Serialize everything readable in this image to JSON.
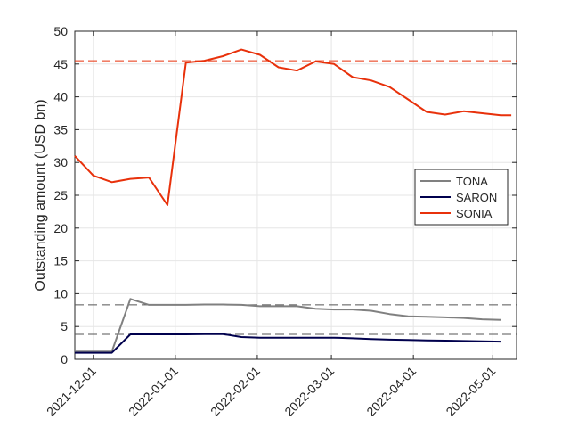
{
  "chart_data": {
    "type": "line",
    "title": "",
    "xlabel": "",
    "ylabel": "Outstanding amount (USD bn)",
    "ylim": [
      0,
      50
    ],
    "xlim": [
      "2021-11-24",
      "2022-05-10"
    ],
    "y_ticks": [
      0,
      5,
      10,
      15,
      20,
      25,
      30,
      35,
      40,
      45,
      50
    ],
    "x_ticks": [
      "2021-12-01",
      "2022-01-01",
      "2022-02-01",
      "2022-03-01",
      "2022-04-01",
      "2022-05-01"
    ],
    "grid": true,
    "legend_position": "right",
    "series": [
      {
        "name": "TONA",
        "color": "#808080",
        "x": [
          "2021-11-24",
          "2021-12-01",
          "2021-12-08",
          "2021-12-15",
          "2021-12-22",
          "2021-12-29",
          "2022-01-05",
          "2022-01-12",
          "2022-01-19",
          "2022-01-26",
          "2022-02-02",
          "2022-02-09",
          "2022-02-16",
          "2022-02-23",
          "2022-03-02",
          "2022-03-09",
          "2022-03-16",
          "2022-03-23",
          "2022-03-30",
          "2022-04-06",
          "2022-04-13",
          "2022-04-20",
          "2022-04-27",
          "2022-05-04"
        ],
        "values": [
          1.2,
          1.2,
          1.2,
          9.2,
          8.3,
          8.3,
          8.3,
          8.35,
          8.35,
          8.3,
          8.1,
          8.1,
          8.1,
          7.7,
          7.6,
          7.6,
          7.4,
          6.9,
          6.55,
          6.5,
          6.4,
          6.3,
          6.1,
          6.0
        ]
      },
      {
        "name": "SARON",
        "color": "#00004d",
        "x": [
          "2021-11-24",
          "2021-12-01",
          "2021-12-08",
          "2021-12-15",
          "2021-12-22",
          "2021-12-29",
          "2022-01-05",
          "2022-01-12",
          "2022-01-19",
          "2022-01-26",
          "2022-02-02",
          "2022-02-09",
          "2022-02-16",
          "2022-02-23",
          "2022-03-02",
          "2022-03-09",
          "2022-03-16",
          "2022-03-23",
          "2022-03-30",
          "2022-04-06",
          "2022-04-13",
          "2022-04-20",
          "2022-04-27",
          "2022-05-04"
        ],
        "values": [
          1.0,
          1.0,
          1.0,
          3.8,
          3.8,
          3.8,
          3.8,
          3.85,
          3.85,
          3.4,
          3.3,
          3.3,
          3.3,
          3.3,
          3.3,
          3.2,
          3.1,
          3.0,
          2.95,
          2.9,
          2.85,
          2.8,
          2.75,
          2.7
        ]
      },
      {
        "name": "SONIA",
        "color": "#e8310b",
        "x": [
          "2021-11-24",
          "2021-12-01",
          "2021-12-08",
          "2021-12-15",
          "2021-12-22",
          "2021-12-29",
          "2022-01-05",
          "2022-01-12",
          "2022-01-19",
          "2022-01-26",
          "2022-02-02",
          "2022-02-09",
          "2022-02-16",
          "2022-02-23",
          "2022-03-02",
          "2022-03-09",
          "2022-03-16",
          "2022-03-23",
          "2022-03-30",
          "2022-04-06",
          "2022-04-13",
          "2022-04-20",
          "2022-04-27",
          "2022-05-04",
          "2022-05-08"
        ],
        "values": [
          31.0,
          28.0,
          27.0,
          27.5,
          27.7,
          23.5,
          45.2,
          45.5,
          46.2,
          47.2,
          46.4,
          44.5,
          44.0,
          45.4,
          45.0,
          43.0,
          42.5,
          41.5,
          39.6,
          37.7,
          37.3,
          37.8,
          37.5,
          37.2,
          37.2
        ]
      }
    ],
    "reference_lines": [
      {
        "color": "#e8310b",
        "y": 45.5
      },
      {
        "color": "#555555",
        "y": 8.3
      },
      {
        "color": "#555555",
        "y": 3.8
      }
    ]
  }
}
